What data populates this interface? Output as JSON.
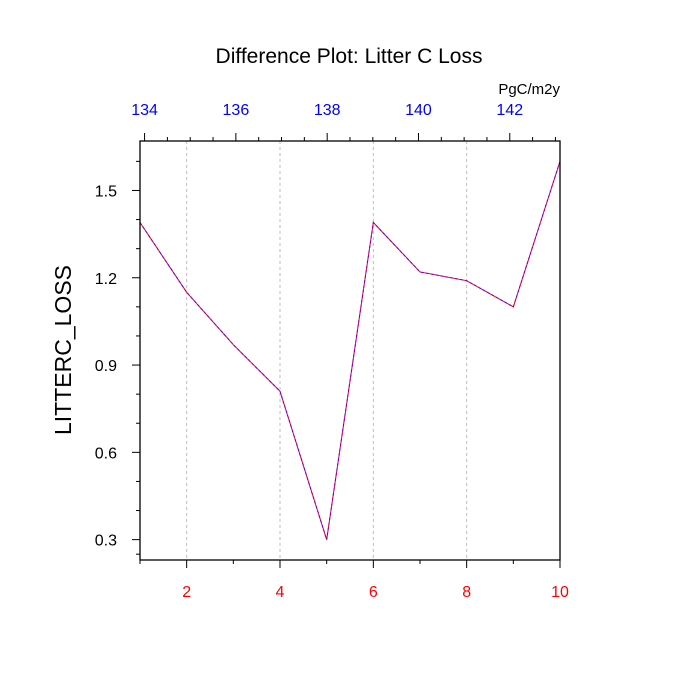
{
  "chart_data": {
    "type": "line",
    "title": "Difference Plot: Litter C Loss",
    "units": "PgC/m2y",
    "ylabel": "LITTERC_LOSS",
    "xlabel": "",
    "x": [
      1,
      2,
      3,
      4,
      5,
      6,
      7,
      8,
      9,
      10
    ],
    "series": [
      {
        "values": [
          1.39,
          1.15,
          0.97,
          0.81,
          0.3,
          1.39,
          1.22,
          1.19,
          1.1,
          1.6
        ],
        "color": "#5a00ff",
        "dash": true
      }
    ],
    "xlim": [
      1,
      10
    ],
    "ylim": [
      0.23,
      1.67
    ],
    "xticks": [
      2,
      4,
      6,
      8,
      10
    ],
    "xtick_color": "#ff0000",
    "yticks": [
      0.3,
      0.6,
      0.9,
      1.2,
      1.5
    ],
    "yticklabels": [
      "0.3",
      "0.6",
      "0.9",
      "1.2",
      "1.5"
    ],
    "top_axis": {
      "lim": [
        133.9,
        143.1
      ],
      "ticks": [
        134,
        136,
        138,
        140,
        142
      ],
      "color": "#0000ff"
    },
    "grid": "vertical dashed at bottom-axis ticks"
  }
}
